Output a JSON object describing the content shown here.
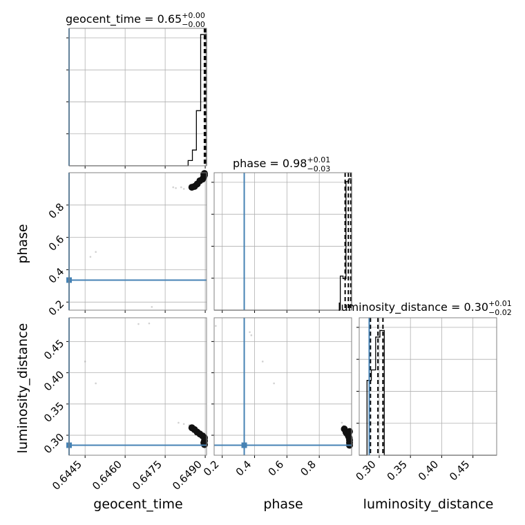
{
  "chart_data": {
    "type": "scatter",
    "plot_kind": "corner",
    "parameters": [
      "geocent_time",
      "phase",
      "luminosity_distance"
    ],
    "truth_color": "#4682b4",
    "colors": {
      "truth": "#4682b4",
      "hist": "#000000",
      "grid": "#b0b0b0",
      "axis": "#808080"
    },
    "grid": true,
    "titles": [
      {
        "param": "geocent_time",
        "lead": "geocent_time = 0.65",
        "sup": "+0.00",
        "sub": "−0.00"
      },
      {
        "param": "phase",
        "lead": "phase = 0.98",
        "sup": "+0.01",
        "sub": "−0.03"
      },
      {
        "param": "luminosity_distance",
        "lead": "luminosity_distance = 0.30",
        "sup": "+0.01",
        "sub": "−0.02"
      }
    ],
    "xlabels": [
      "geocent_time",
      "phase",
      "luminosity_distance"
    ],
    "ylabels": [
      "",
      "phase",
      "luminosity_distance"
    ],
    "ticks": {
      "geocent_time": [
        "0.6445",
        "0.6460",
        "0.6475",
        "0.6490"
      ],
      "phase": [
        "0.2",
        "0.4",
        "0.6",
        "0.8"
      ],
      "luminosity_distance": [
        "0.30",
        "0.35",
        "0.40",
        "0.45"
      ]
    },
    "ranges": {
      "geocent_time": [
        0.6439,
        0.64905
      ],
      "phase": [
        0.15,
        1.0
      ],
      "luminosity_distance": [
        0.268,
        0.488
      ]
    },
    "truths": {
      "geocent_time": 0.6439,
      "phase": 0.336,
      "luminosity_distance": 0.284
    },
    "quantile_lines": {
      "geocent_time": [
        0.64897,
        0.64899,
        0.64902
      ],
      "phase": [
        0.96,
        0.98,
        0.995
      ],
      "luminosity_distance": [
        0.286,
        0.298,
        0.306
      ]
    },
    "histograms": {
      "geocent_time": {
        "edges": [
          0.6439,
          0.64836,
          0.64852,
          0.64867,
          0.64883,
          0.64898,
          0.64905
        ],
        "counts": [
          0,
          0.04,
          0.12,
          0.42,
          1.0,
          1.0
        ]
      },
      "phase": {
        "edges": [
          0.15,
          0.93,
          0.947,
          0.965,
          0.983,
          1.0
        ],
        "counts": [
          0,
          0.26,
          0.24,
          0.98,
          1.0
        ]
      },
      "luminosity_distance": {
        "edges": [
          0.268,
          0.2805,
          0.2874,
          0.2943,
          0.3012,
          0.3081,
          0.488
        ],
        "counts": [
          0,
          0.57,
          0.65,
          0.9,
          0.95,
          0
        ]
      }
    },
    "samples": {
      "phase_vs_geocent_time": {
        "scatter": [
          [
            0.6447,
            0.48
          ],
          [
            0.6449,
            0.51
          ],
          [
            0.647,
            0.17
          ],
          [
            0.6478,
            0.91
          ],
          [
            0.6479,
            0.905
          ],
          [
            0.6481,
            0.91
          ],
          [
            0.6482,
            0.9
          ]
        ],
        "dense": [
          [
            0.6485,
            0.91
          ],
          [
            0.6486,
            0.915
          ],
          [
            0.6487,
            0.93
          ],
          [
            0.6488,
            0.95
          ],
          [
            0.6489,
            0.96
          ],
          [
            0.64895,
            0.975
          ],
          [
            0.649,
            0.985
          ],
          [
            0.649,
            0.995
          ],
          [
            0.64895,
            0.99
          ]
        ]
      },
      "luminosity_distance_vs_geocent_time": {
        "scatter": [
          [
            0.6445,
            0.418
          ],
          [
            0.6449,
            0.383
          ],
          [
            0.6465,
            0.478
          ],
          [
            0.6469,
            0.479
          ],
          [
            0.648,
            0.32
          ],
          [
            0.6482,
            0.318
          ],
          [
            0.6484,
            0.316
          ]
        ],
        "dense": [
          [
            0.6485,
            0.312
          ],
          [
            0.6486,
            0.309
          ],
          [
            0.6487,
            0.305
          ],
          [
            0.6488,
            0.302
          ],
          [
            0.6489,
            0.299
          ],
          [
            0.649,
            0.296
          ],
          [
            0.649,
            0.291
          ],
          [
            0.64895,
            0.288
          ],
          [
            0.649,
            0.285
          ]
        ]
      },
      "luminosity_distance_vs_phase": {
        "scatter": [
          [
            0.16,
            0.475
          ],
          [
            0.37,
            0.465
          ],
          [
            0.38,
            0.46
          ],
          [
            0.45,
            0.418
          ],
          [
            0.52,
            0.383
          ],
          [
            0.94,
            0.32
          ],
          [
            0.95,
            0.315
          ]
        ],
        "dense": [
          [
            0.955,
            0.31
          ],
          [
            0.965,
            0.305
          ],
          [
            0.97,
            0.303
          ],
          [
            0.98,
            0.299
          ],
          [
            0.985,
            0.296
          ],
          [
            0.99,
            0.292
          ],
          [
            0.995,
            0.288
          ],
          [
            0.995,
            0.284
          ],
          [
            0.99,
            0.306
          ]
        ]
      }
    }
  }
}
